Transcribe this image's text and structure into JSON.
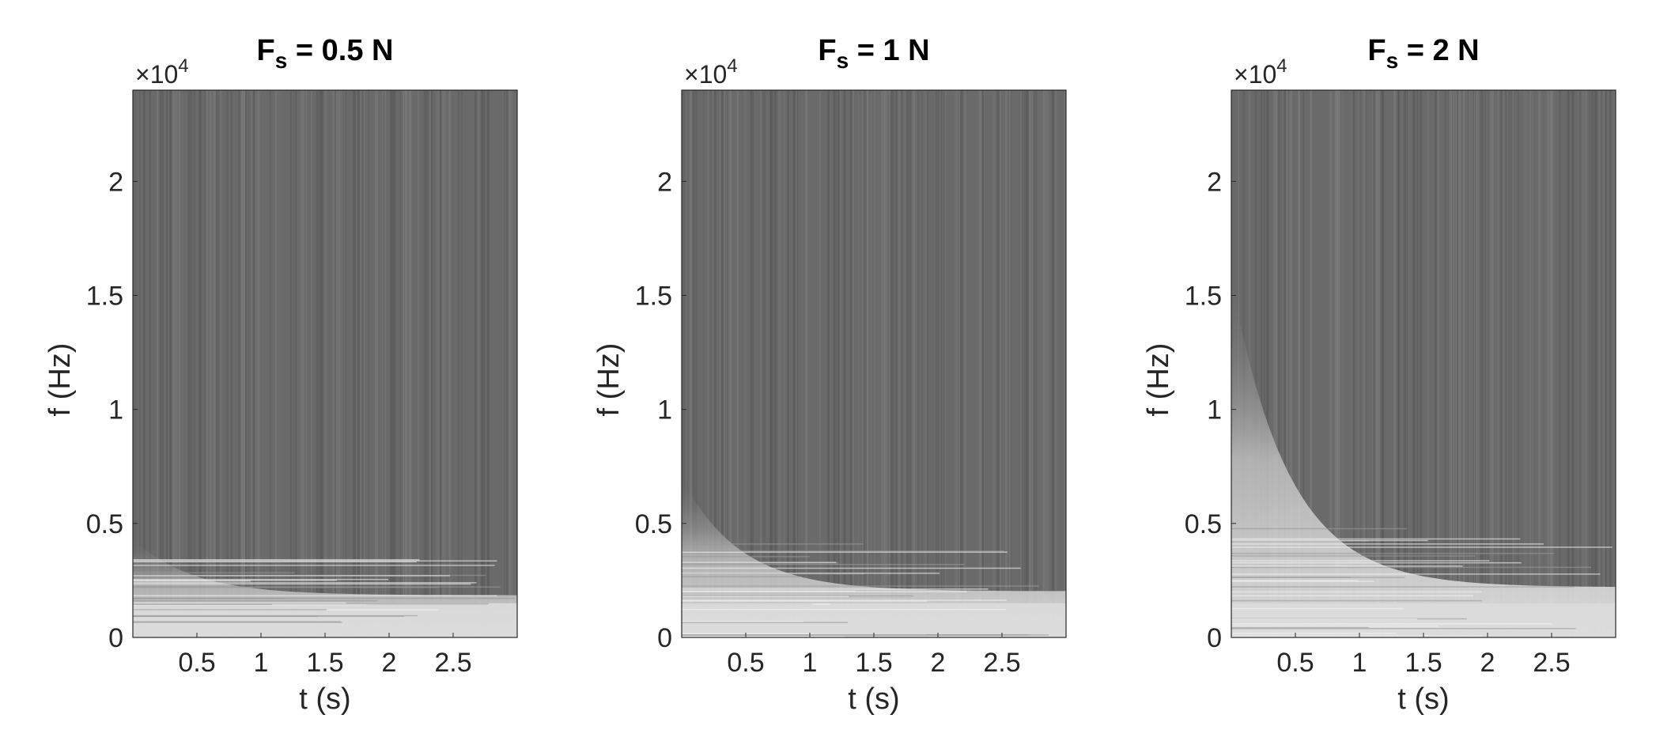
{
  "chart_data": [
    {
      "type": "heatmap",
      "title_main": "F",
      "title_sub": "s",
      "title_rest": " = 0.5 N",
      "xlabel": "t (s)",
      "ylabel": "f (Hz)",
      "xlim": [
        0,
        3
      ],
      "ylim": [
        0,
        24000
      ],
      "xticks": [
        0.5,
        1,
        1.5,
        2,
        2.5
      ],
      "xtick_labels": [
        "0.5",
        "1",
        "1.5",
        "2",
        "2.5"
      ],
      "yticks": [
        0,
        5000,
        10000,
        15000,
        20000
      ],
      "ytick_labels": [
        "0",
        "0.5",
        "1",
        "1.5",
        "2"
      ],
      "exponent_base": "×10",
      "exponent_power": "4",
      "colormap": "gray",
      "bright_band_hz": [
        0,
        1500,
        2500,
        5000
      ]
    },
    {
      "type": "heatmap",
      "title_main": "F",
      "title_sub": "s",
      "title_rest": " = 1 N",
      "xlabel": "t (s)",
      "ylabel": "f (Hz)",
      "xlim": [
        0,
        3
      ],
      "ylim": [
        0,
        24000
      ],
      "xticks": [
        0.5,
        1,
        1.5,
        2,
        2.5
      ],
      "xtick_labels": [
        "0.5",
        "1",
        "1.5",
        "2",
        "2.5"
      ],
      "yticks": [
        0,
        5000,
        10000,
        15000,
        20000
      ],
      "ytick_labels": [
        "0",
        "0.5",
        "1",
        "1.5",
        "2"
      ],
      "exponent_base": "×10",
      "exponent_power": "4",
      "colormap": "gray",
      "bright_band_hz": [
        0,
        1500,
        3000,
        8000
      ]
    },
    {
      "type": "heatmap",
      "title_main": "F",
      "title_sub": "s",
      "title_rest": " = 2 N",
      "xlabel": "t (s)",
      "ylabel": "f (Hz)",
      "xlim": [
        0,
        3
      ],
      "ylim": [
        0,
        24000
      ],
      "xticks": [
        0.5,
        1,
        1.5,
        2,
        2.5
      ],
      "xtick_labels": [
        "0.5",
        "1",
        "1.5",
        "2",
        "2.5"
      ],
      "yticks": [
        0,
        5000,
        10000,
        15000,
        20000
      ],
      "ytick_labels": [
        "0",
        "0.5",
        "1",
        "1.5",
        "2"
      ],
      "exponent_base": "×10",
      "exponent_power": "4",
      "colormap": "gray",
      "bright_band_hz": [
        0,
        1500,
        3500,
        17000
      ]
    }
  ]
}
